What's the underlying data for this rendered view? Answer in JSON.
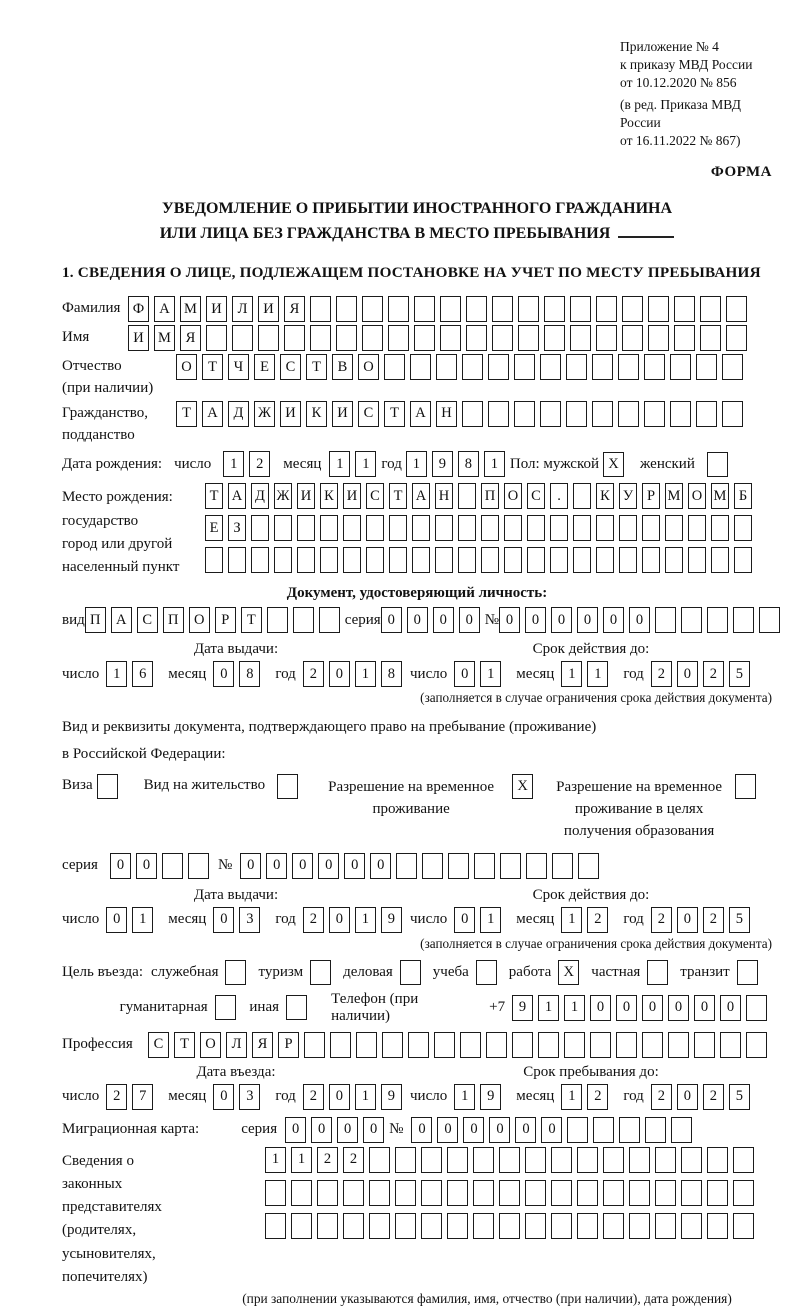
{
  "page": {
    "appendix_lines": [
      "Приложение № 4",
      "к приказу МВД России",
      "от 10.12.2020 № 856"
    ],
    "edition_lines": [
      "(в ред. Приказа МВД России",
      "от 16.11.2022 № 867)"
    ],
    "form_label": "ФОРМА",
    "title_line1": "УВЕДОМЛЕНИЕ О ПРИБЫТИИ ИНОСТРАННОГО ГРАЖДАНИНА",
    "title_line2": "ИЛИ ЛИЦА БЕЗ ГРАЖДАНСТВА В МЕСТО ПРЕБЫВАНИЯ",
    "section1_heading": "1. СВЕДЕНИЯ О ЛИЦЕ, ПОДЛЕЖАЩЕМ ПОСТАНОВКЕ НА УЧЕТ ПО МЕСТУ ПРЕБЫВАНИЯ"
  },
  "date_labels": {
    "day": "число",
    "month": "месяц",
    "year": "год"
  },
  "person": {
    "surname": {
      "label": "Фамилия",
      "cells": {
        "chars": "ФАМИЛИЯ",
        "count": 24
      }
    },
    "given_name": {
      "label": "Имя",
      "cells": {
        "chars": "ИМЯ",
        "count": 24
      }
    },
    "patronymic": {
      "label": "Отчество",
      "label_note": "(при наличии)",
      "cells": {
        "chars": "ОТЧЕСТВО",
        "count": 22
      }
    },
    "citizenship": {
      "label1": "Гражданство,",
      "label2": "подданство",
      "cells": {
        "chars": "ТАДЖИКИСТАН",
        "count": 22
      }
    },
    "birth_date": {
      "label": "Дата рождения:",
      "day": "12",
      "month": "11",
      "year": "1981"
    },
    "sex": {
      "male_label": "Пол: мужской",
      "male_checked": true,
      "female_label": "женский",
      "female_checked": false
    },
    "birth_place": {
      "label_lines": [
        "Место рождения:",
        "государство",
        "город или другой",
        "населенный пункт"
      ],
      "row1": {
        "chars": "ТАДЖИКИСТАН ПОС. КУРМОМБ",
        "count": 24
      },
      "row2": {
        "chars": "ЕЗ",
        "count": 24
      },
      "row3": {
        "chars": "",
        "count": 24
      }
    }
  },
  "identity_doc": {
    "heading": "Документ, удостоверяющий личность:",
    "kind_label": "вид",
    "kind": {
      "chars": "ПАСПОРТ",
      "count": 10
    },
    "series_label": "серия",
    "series": {
      "chars": "0000",
      "count": 4
    },
    "number_label": "№",
    "number": {
      "chars": "000000",
      "count": 11
    },
    "issue_title": "Дата выдачи:",
    "issue": {
      "day": "16",
      "month": "08",
      "year": "2018"
    },
    "valid_title": "Срок действия до:",
    "valid": {
      "day": "01",
      "month": "11",
      "year": "2025"
    },
    "note": "(заполняется в случае ограничения срока действия документа)"
  },
  "residence_doc": {
    "intro_line1": "Вид и реквизиты документа, подтверждающего право на пребывание (проживание)",
    "intro_line2": "в Российской Федерации:",
    "options": [
      {
        "label": "Виза",
        "checked": false
      },
      {
        "label": "Вид на жительство",
        "checked": false
      },
      {
        "label": "Разрешение на временное проживание",
        "checked": true
      },
      {
        "label": "Разрешение на временное проживание в целях получения образования",
        "checked": false
      }
    ],
    "series_label": "серия",
    "series": {
      "chars": "00",
      "count": 4
    },
    "number_label": "№",
    "number": {
      "chars": "000000",
      "count": 14
    },
    "issue_title": "Дата выдачи:",
    "issue": {
      "day": "01",
      "month": "03",
      "year": "2019"
    },
    "valid_title": "Срок действия до:",
    "valid": {
      "day": "01",
      "month": "12",
      "year": "2025"
    },
    "note": "(заполняется в случае ограничения срока действия документа)"
  },
  "visit": {
    "purpose_label": "Цель въезда:",
    "purposes_row1": [
      {
        "label": "служебная",
        "checked": false
      },
      {
        "label": "туризм",
        "checked": false
      },
      {
        "label": "деловая",
        "checked": false
      },
      {
        "label": "учеба",
        "checked": false
      },
      {
        "label": "работа",
        "checked": true
      },
      {
        "label": "частная",
        "checked": false
      },
      {
        "label": "транзит",
        "checked": false
      }
    ],
    "purposes_row2": [
      {
        "label": "гуманитарная",
        "checked": false
      },
      {
        "label": "иная",
        "checked": false
      }
    ],
    "phone_label": "Телефон (при наличии)",
    "phone_prefix": "+7",
    "phone": {
      "chars": "911000000",
      "count": 10
    },
    "profession_label": "Профессия",
    "profession": {
      "chars": "СТОЛЯР",
      "count": 24
    },
    "entry_title": "Дата въезда:",
    "entry": {
      "day": "27",
      "month": "03",
      "year": "2019"
    },
    "stay_title": "Срок пребывания до:",
    "stay": {
      "day": "19",
      "month": "12",
      "year": "2025"
    }
  },
  "migration_card": {
    "label": "Миграционная карта:",
    "series_label": "серия",
    "series": {
      "chars": "0000",
      "count": 4
    },
    "number_label": "№",
    "number": {
      "chars": "000000",
      "count": 11
    }
  },
  "representatives": {
    "label_lines": [
      "Сведения о",
      "законных",
      "представителях",
      "(родителях,",
      "усыновителях,",
      "попечителях)"
    ],
    "row1": {
      "chars": "1122",
      "count": 19
    },
    "row2": {
      "chars": "",
      "count": 19
    },
    "row3": {
      "chars": "",
      "count": 19
    },
    "note": "(при заполнении указываются фамилия, имя, отчество (при наличии), дата рождения)"
  }
}
